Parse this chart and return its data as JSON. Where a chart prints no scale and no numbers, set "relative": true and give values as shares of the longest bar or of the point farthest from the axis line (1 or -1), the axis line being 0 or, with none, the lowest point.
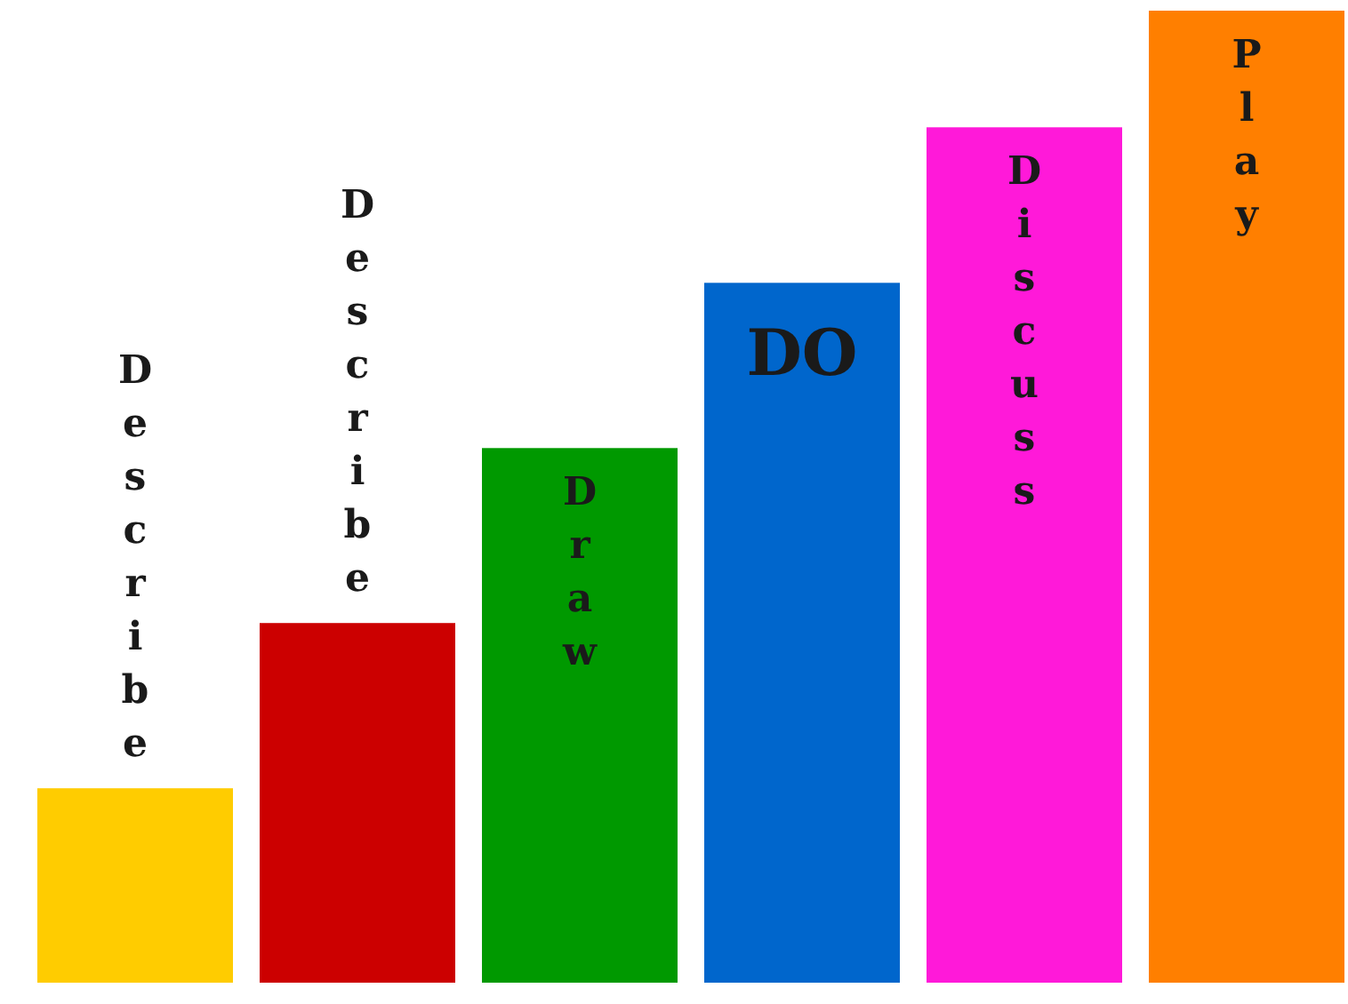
{
  "chart_data": {
    "type": "bar",
    "relative": true,
    "categories": [
      "Describe",
      "Describe",
      "Draw",
      "DO",
      "Discuss",
      "Play"
    ],
    "values": [
      0.2,
      0.37,
      0.55,
      0.72,
      0.88,
      1
    ],
    "colors": [
      "#ffcc00",
      "#cc0000",
      "#009900",
      "#0066cc",
      "#ff19d9",
      "#ff7f00"
    ]
  }
}
